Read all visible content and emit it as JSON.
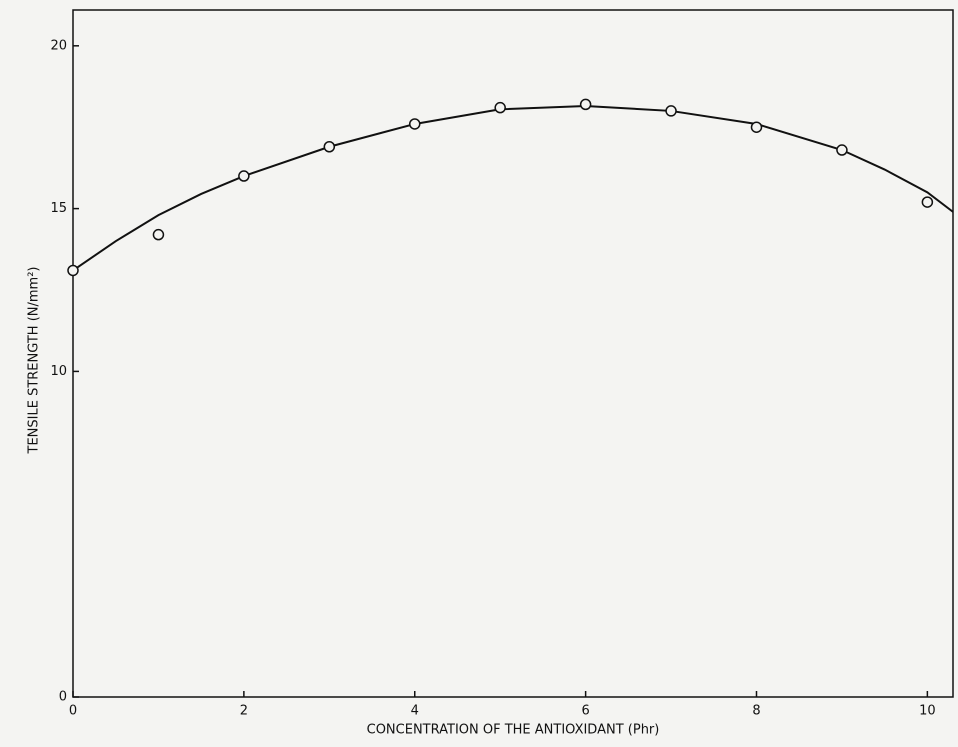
{
  "chart_data": {
    "type": "scatter",
    "xlabel": "CONCENTRATION OF THE ANTIOXIDANT (Phr)",
    "ylabel": "TENSILE STRENGTH (N/mm²)",
    "series": [
      {
        "color": "#111111",
        "x": [
          0,
          1,
          2,
          3,
          4,
          5,
          6,
          7,
          8,
          9,
          10
        ],
        "values": [
          13.1,
          14.2,
          16.0,
          16.9,
          17.6,
          18.1,
          18.2,
          18.0,
          17.5,
          16.8,
          15.2
        ]
      }
    ],
    "curve": {
      "color": "#111111",
      "x": [
        0,
        0.5,
        1,
        1.5,
        2,
        3,
        4,
        5,
        6,
        7,
        8,
        9,
        9.5,
        10,
        10.3
      ],
      "values": [
        13.1,
        14.0,
        14.8,
        15.45,
        16.0,
        16.9,
        17.6,
        18.05,
        18.15,
        18.0,
        17.6,
        16.8,
        16.2,
        15.5,
        14.9
      ]
    },
    "xlim": [
      0,
      10.3
    ],
    "xticks": [
      0,
      2,
      4,
      6,
      8,
      10
    ],
    "ylim": [
      0,
      21.1
    ],
    "yticks": [
      0,
      10,
      15,
      20
    ]
  }
}
